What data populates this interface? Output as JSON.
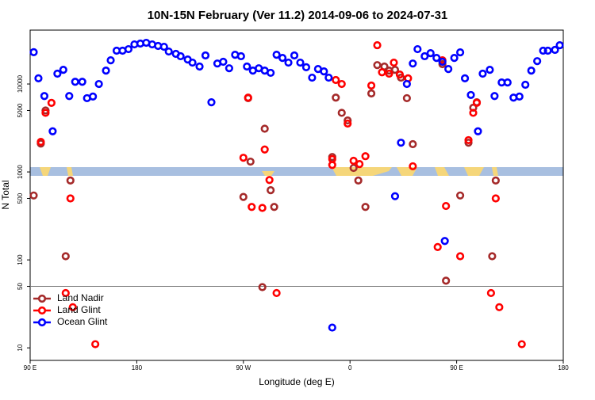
{
  "chart_data": {
    "type": "scatter",
    "title": "10N-15N February (Ver 11.2)   2014-09-06 to 2024-07-31",
    "x_label": "Longitude (deg E)",
    "y_label": "N Total",
    "xlim": [
      90,
      540
    ],
    "xticks": [
      {
        "value": 90,
        "label": "90 E"
      },
      180,
      {
        "value": 270,
        "label": "90 W"
      },
      {
        "value": 360,
        "label": "0"
      },
      {
        "value": 450,
        "label": "90 E"
      },
      {
        "value": 540,
        "label": "180"
      }
    ],
    "ylim": [
      7.2,
      41000
    ],
    "y_scale": "log",
    "yticks": [
      10,
      50,
      100,
      500,
      1000,
      5000,
      10000
    ],
    "hline": 50,
    "legend": "lower left",
    "series": [
      {
        "name": "Land Nadir",
        "color": "#a52a2a",
        "x": [
          93,
          99,
          103,
          120,
          124,
          270,
          274,
          276,
          286,
          288,
          293,
          296,
          348,
          353,
          358,
          345,
          363,
          367,
          373,
          378,
          383,
          389,
          393,
          398,
          403,
          408,
          413,
          438,
          441,
          453,
          460,
          464,
          467,
          480,
          483
        ],
        "values": [
          540,
          2100,
          5000,
          110,
          800,
          520,
          6900,
          1310,
          49,
          3100,
          620,
          400,
          7000,
          4700,
          3850,
          1480,
          1110,
          800,
          400,
          7800,
          16400,
          15800,
          14200,
          14500,
          11800,
          6900,
          2070,
          16800,
          58,
          540,
          2150,
          5370,
          6200,
          110,
          800
        ]
      },
      {
        "name": "Land Glint",
        "color": "#ff0000",
        "x": [
          99,
          103,
          108,
          120,
          124,
          126,
          145,
          270,
          274,
          277,
          286,
          288,
          292,
          298,
          348,
          353,
          345,
          345,
          358,
          363,
          368,
          373,
          378,
          383,
          387,
          393,
          397,
          402,
          409,
          413,
          434,
          438,
          441,
          453,
          460,
          464,
          467,
          479,
          483,
          486,
          505
        ],
        "values": [
          2200,
          4700,
          6100,
          42,
          500,
          29,
          11,
          1450,
          7000,
          400,
          390,
          1800,
          810,
          42,
          11100,
          10000,
          1200,
          1400,
          3550,
          1340,
          1230,
          1510,
          9600,
          27600,
          13600,
          13100,
          17500,
          12800,
          11600,
          1160,
          140,
          18600,
          410,
          110,
          2300,
          4700,
          6100,
          42,
          500,
          29,
          11
        ]
      },
      {
        "name": "Ocean Glint",
        "color": "#0000ff",
        "x": [
          93,
          97,
          102,
          109,
          113,
          118,
          123,
          128,
          134,
          138,
          143,
          148,
          154,
          158,
          163,
          168,
          173,
          178,
          183,
          188,
          193,
          198,
          203,
          207,
          213,
          217,
          223,
          227,
          233,
          238,
          243,
          248,
          253,
          258,
          263,
          268,
          273,
          278,
          283,
          288,
          293,
          298,
          303,
          308,
          313,
          318,
          323,
          328,
          333,
          338,
          342,
          345,
          398,
          403,
          408,
          413,
          417,
          423,
          428,
          433,
          438,
          440,
          443,
          448,
          453,
          457,
          462,
          468,
          472,
          478,
          482,
          488,
          493,
          498,
          503,
          508,
          513,
          518,
          523,
          527,
          533,
          537
        ],
        "values": [
          23000,
          11600,
          7300,
          2900,
          13100,
          14500,
          7300,
          10600,
          10600,
          6900,
          7200,
          10000,
          14200,
          18600,
          23900,
          23900,
          24900,
          28200,
          28800,
          29400,
          28200,
          27100,
          26500,
          23400,
          22000,
          20700,
          19000,
          17500,
          15800,
          21100,
          6200,
          17100,
          17900,
          15100,
          21500,
          20700,
          15800,
          14200,
          15100,
          14200,
          13400,
          21500,
          19800,
          17500,
          21100,
          17500,
          15500,
          11800,
          14800,
          13900,
          11800,
          17,
          530,
          2150,
          10000,
          17100,
          24900,
          20700,
          22400,
          19800,
          17900,
          164,
          14800,
          19800,
          22900,
          11600,
          7500,
          2900,
          13100,
          14500,
          7300,
          10400,
          10400,
          7000,
          7200,
          9800,
          14200,
          18200,
          23900,
          23900,
          24400,
          27600
        ]
      }
    ]
  }
}
